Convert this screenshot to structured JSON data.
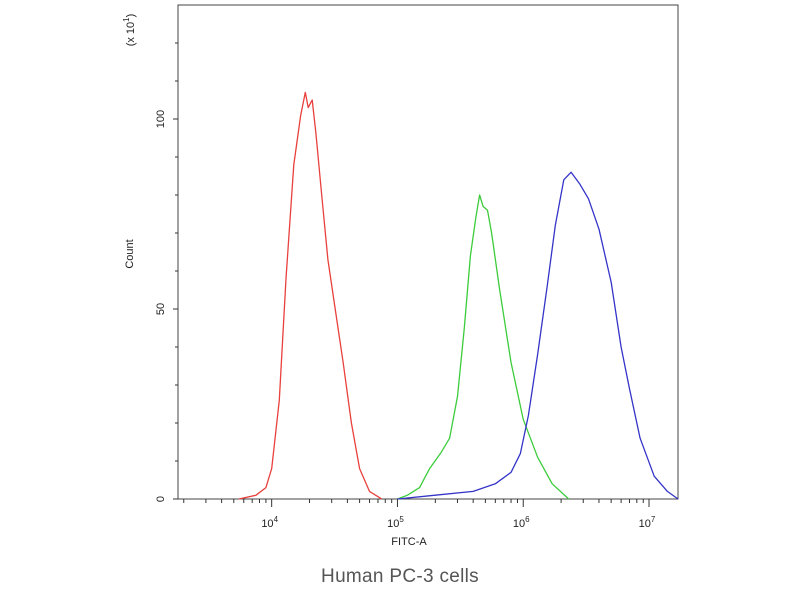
{
  "caption": "Human PC-3 cells",
  "colors": {
    "red": "#e8403c",
    "green": "#3ccc3c",
    "blue": "#3434c8",
    "axis": "#333333"
  },
  "chart_data": {
    "type": "line",
    "title": "",
    "xlabel": "FITC-A",
    "ylabel": "Count",
    "yunit": "(x 10^1)",
    "xscale": "log",
    "xlim": [
      1800,
      17000000
    ],
    "ylim": [
      0,
      130
    ],
    "xticks": [
      {
        "value": 10000,
        "base": "10",
        "exp": "4"
      },
      {
        "value": 100000,
        "base": "10",
        "exp": "5"
      },
      {
        "value": 1000000,
        "base": "10",
        "exp": "6"
      },
      {
        "value": 10000000,
        "base": "10",
        "exp": "7"
      }
    ],
    "yticks": [
      0,
      50,
      100
    ],
    "grid": false,
    "legend": "none",
    "series": [
      {
        "color": "#e8403c",
        "x": [
          5500,
          7500,
          9000,
          10000,
          11500,
          13000,
          15000,
          17000,
          18500,
          19500,
          21000,
          22500,
          25000,
          28000,
          32000,
          37000,
          43000,
          50000,
          60000,
          75000
        ],
        "values": [
          0,
          1,
          3,
          8,
          26,
          58,
          88,
          101,
          107,
          103,
          105,
          96,
          80,
          63,
          50,
          36,
          20,
          8,
          2,
          0
        ]
      },
      {
        "color": "#3ccc3c",
        "x": [
          100000,
          120000,
          150000,
          180000,
          220000,
          260000,
          300000,
          340000,
          380000,
          420000,
          450000,
          480000,
          520000,
          560000,
          650000,
          800000,
          1000000,
          1300000,
          1700000,
          2300000
        ],
        "values": [
          0,
          1,
          3,
          8,
          12,
          16,
          27,
          45,
          64,
          74,
          80,
          77,
          76,
          70,
          55,
          36,
          21,
          11,
          4,
          0
        ]
      },
      {
        "color": "#3434c8",
        "x": [
          100000,
          200000,
          400000,
          600000,
          800000,
          950000,
          1100000,
          1300000,
          1550000,
          1800000,
          2100000,
          2400000,
          2800000,
          3300000,
          4000000,
          5000000,
          6000000,
          7000000,
          8500000,
          11000000,
          14000000,
          17000000
        ],
        "values": [
          0,
          1,
          2,
          4,
          7,
          12,
          22,
          38,
          56,
          72,
          84,
          86,
          83,
          79,
          71,
          57,
          40,
          29,
          16,
          6,
          2,
          0
        ]
      }
    ]
  }
}
